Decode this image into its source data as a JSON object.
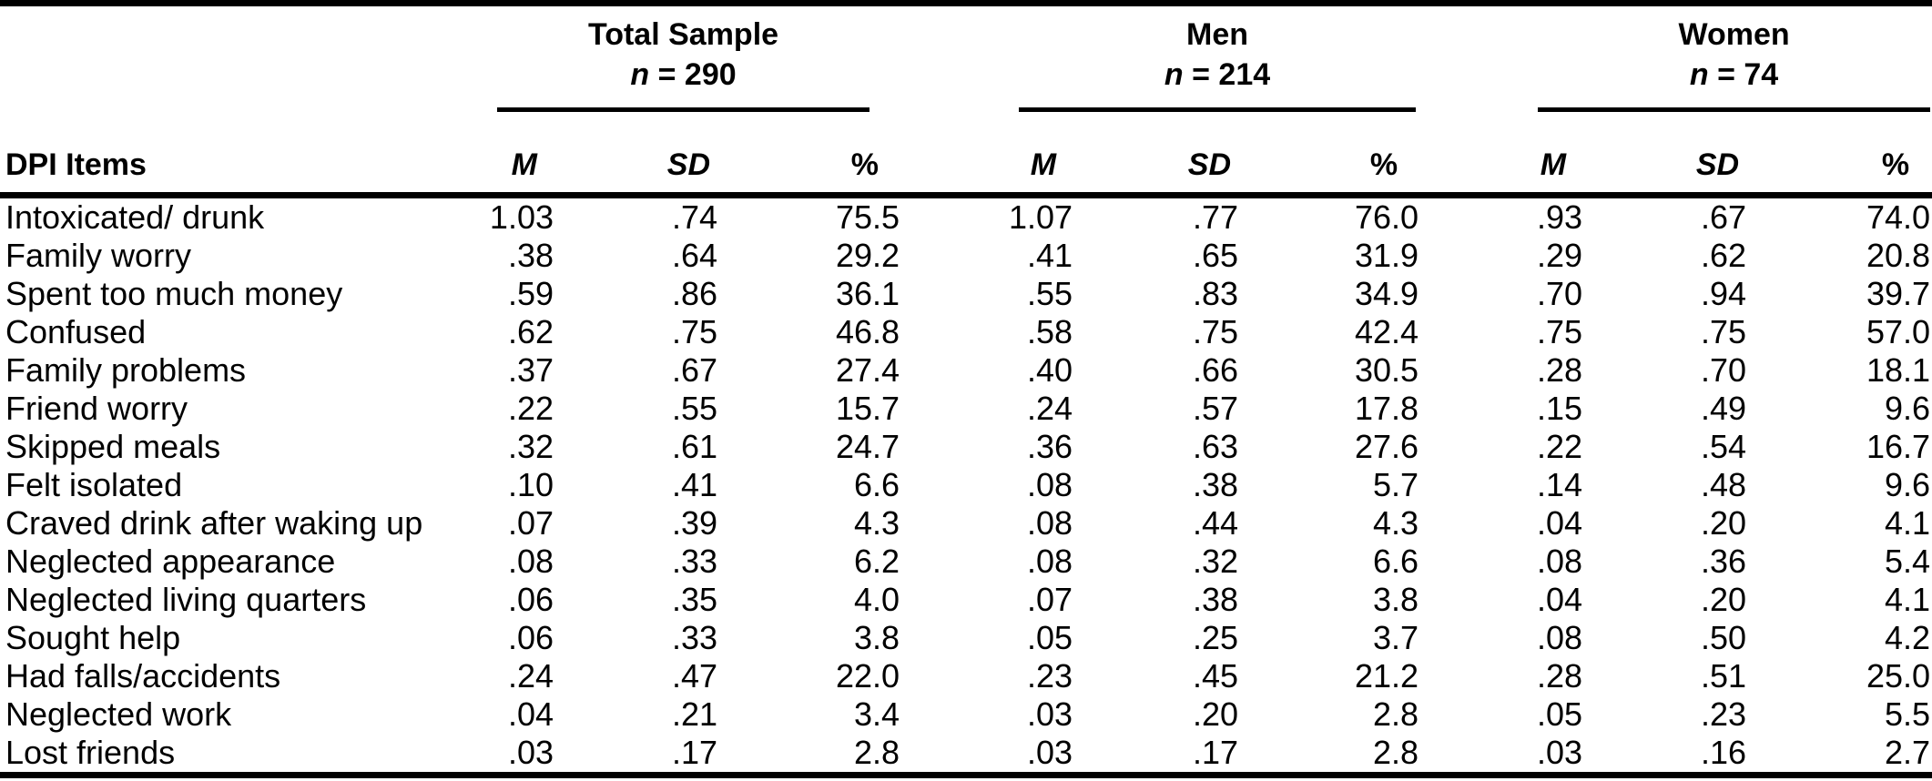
{
  "page": {
    "background": "#ffffff",
    "text_color": "#000000"
  },
  "table": {
    "row_header_label": "DPI Items",
    "stat_headers": [
      "M",
      "SD",
      "%"
    ],
    "groups": [
      {
        "title": "Total Sample",
        "n_italic": "n",
        "n_rest": " = 290"
      },
      {
        "title": "Men",
        "n_italic": "n",
        "n_rest": " = 214"
      },
      {
        "title": "Women",
        "n_italic": "n",
        "n_rest": " = 74"
      }
    ],
    "rows": [
      {
        "item": "Intoxicated/ drunk",
        "t_m": "1.03",
        "t_sd": ".74",
        "t_pct": "75.5",
        "m_m": "1.07",
        "m_sd": ".77",
        "m_pct": "76.0",
        "w_m": ".93",
        "w_sd": ".67",
        "w_pct": "74.0"
      },
      {
        "item": "Family worry",
        "t_m": ".38",
        "t_sd": ".64",
        "t_pct": "29.2",
        "m_m": ".41",
        "m_sd": ".65",
        "m_pct": "31.9",
        "w_m": ".29",
        "w_sd": ".62",
        "w_pct": "20.8"
      },
      {
        "item": "Spent too much money",
        "t_m": ".59",
        "t_sd": ".86",
        "t_pct": "36.1",
        "m_m": ".55",
        "m_sd": ".83",
        "m_pct": "34.9",
        "w_m": ".70",
        "w_sd": ".94",
        "w_pct": "39.7"
      },
      {
        "item": "Confused",
        "t_m": ".62",
        "t_sd": ".75",
        "t_pct": "46.8",
        "m_m": ".58",
        "m_sd": ".75",
        "m_pct": "42.4",
        "w_m": ".75",
        "w_sd": ".75",
        "w_pct": "57.0"
      },
      {
        "item": "Family problems",
        "t_m": ".37",
        "t_sd": ".67",
        "t_pct": "27.4",
        "m_m": ".40",
        "m_sd": ".66",
        "m_pct": "30.5",
        "w_m": ".28",
        "w_sd": ".70",
        "w_pct": "18.1"
      },
      {
        "item": "Friend worry",
        "t_m": ".22",
        "t_sd": ".55",
        "t_pct": "15.7",
        "m_m": ".24",
        "m_sd": ".57",
        "m_pct": "17.8",
        "w_m": ".15",
        "w_sd": ".49",
        "w_pct": "9.6"
      },
      {
        "item": "Skipped meals",
        "t_m": ".32",
        "t_sd": ".61",
        "t_pct": "24.7",
        "m_m": ".36",
        "m_sd": ".63",
        "m_pct": "27.6",
        "w_m": ".22",
        "w_sd": ".54",
        "w_pct": "16.7"
      },
      {
        "item": "Felt isolated",
        "t_m": ".10",
        "t_sd": ".41",
        "t_pct": "6.6",
        "m_m": ".08",
        "m_sd": ".38",
        "m_pct": "5.7",
        "w_m": ".14",
        "w_sd": ".48",
        "w_pct": "9.6"
      },
      {
        "item": "Craved drink after waking up",
        "t_m": ".07",
        "t_sd": ".39",
        "t_pct": "4.3",
        "m_m": ".08",
        "m_sd": ".44",
        "m_pct": "4.3",
        "w_m": ".04",
        "w_sd": ".20",
        "w_pct": "4.1"
      },
      {
        "item": "Neglected appearance",
        "t_m": ".08",
        "t_sd": ".33",
        "t_pct": "6.2",
        "m_m": ".08",
        "m_sd": ".32",
        "m_pct": "6.6",
        "w_m": ".08",
        "w_sd": ".36",
        "w_pct": "5.4"
      },
      {
        "item": "Neglected living quarters",
        "t_m": ".06",
        "t_sd": ".35",
        "t_pct": "4.0",
        "m_m": ".07",
        "m_sd": ".38",
        "m_pct": "3.8",
        "w_m": ".04",
        "w_sd": ".20",
        "w_pct": "4.1"
      },
      {
        "item": "Sought help",
        "t_m": ".06",
        "t_sd": ".33",
        "t_pct": "3.8",
        "m_m": ".05",
        "m_sd": ".25",
        "m_pct": "3.7",
        "w_m": ".08",
        "w_sd": ".50",
        "w_pct": "4.2"
      },
      {
        "item": "Had falls/accidents",
        "t_m": ".24",
        "t_sd": ".47",
        "t_pct": "22.0",
        "m_m": ".23",
        "m_sd": ".45",
        "m_pct": "21.2",
        "w_m": ".28",
        "w_sd": ".51",
        "w_pct": "25.0"
      },
      {
        "item": "Neglected work",
        "t_m": ".04",
        "t_sd": ".21",
        "t_pct": "3.4",
        "m_m": ".03",
        "m_sd": ".20",
        "m_pct": "2.8",
        "w_m": ".05",
        "w_sd": ".23",
        "w_pct": "5.5"
      },
      {
        "item": "Lost friends",
        "t_m": ".03",
        "t_sd": ".17",
        "t_pct": "2.8",
        "m_m": ".03",
        "m_sd": ".17",
        "m_pct": "2.8",
        "w_m": ".03",
        "w_sd": ".16",
        "w_pct": "2.7"
      }
    ]
  }
}
